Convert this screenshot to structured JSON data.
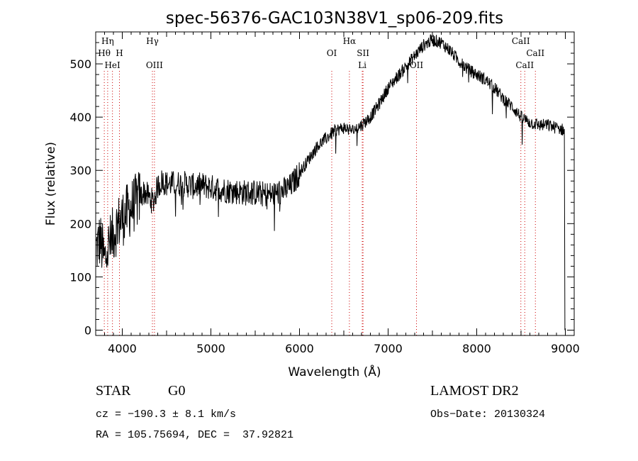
{
  "chart_data": {
    "type": "line",
    "title": "spec-56376-GAC103N38V1_sp06-209.fits",
    "xlabel": "Wavelength (Å)",
    "ylabel": "Flux (relative)",
    "xlim": [
      3700,
      9100
    ],
    "ylim": [
      -10,
      560
    ],
    "xticks": [
      4000,
      5000,
      6000,
      7000,
      8000,
      9000
    ],
    "yticks": [
      0,
      100,
      200,
      300,
      400,
      500
    ],
    "grid": false,
    "line_color": "#000000",
    "marker_color": "#cc0000",
    "x": [
      3700,
      3750,
      3800,
      3850,
      3900,
      3950,
      4000,
      4050,
      4100,
      4150,
      4200,
      4250,
      4300,
      4350,
      4400,
      4450,
      4500,
      4600,
      4700,
      4800,
      4900,
      5000,
      5100,
      5200,
      5300,
      5400,
      5500,
      5600,
      5700,
      5800,
      5900,
      6000,
      6100,
      6200,
      6300,
      6400,
      6500,
      6600,
      6700,
      6800,
      6900,
      7000,
      7100,
      7200,
      7300,
      7400,
      7500,
      7600,
      7700,
      7800,
      7900,
      8000,
      8100,
      8200,
      8300,
      8400,
      8500,
      8600,
      8700,
      8800,
      8900,
      9000
    ],
    "y": [
      150,
      170,
      130,
      160,
      180,
      200,
      210,
      220,
      230,
      240,
      250,
      260,
      250,
      240,
      270,
      280,
      275,
      275,
      275,
      270,
      272,
      268,
      265,
      262,
      260,
      258,
      258,
      255,
      255,
      260,
      270,
      295,
      320,
      345,
      360,
      375,
      380,
      375,
      385,
      400,
      425,
      455,
      475,
      495,
      515,
      535,
      545,
      540,
      525,
      505,
      490,
      480,
      470,
      455,
      435,
      420,
      400,
      390,
      385,
      385,
      380,
      375
    ],
    "lines": [
      {
        "label": "Hη",
        "x": 3835,
        "color": "#cc0000"
      },
      {
        "label": "Hθ",
        "x": 3797,
        "color": "#cc0000"
      },
      {
        "label": "H",
        "x": 3968,
        "color": "#cc0000"
      },
      {
        "label": "HeI",
        "x": 3889,
        "color": "#cc0000"
      },
      {
        "label": "Hγ",
        "x": 4340,
        "color": "#cc0000"
      },
      {
        "label": "OIII",
        "x": 4363,
        "color": "#cc0000"
      },
      {
        "label": "OI",
        "x": 6364,
        "color": "#cc0000"
      },
      {
        "label": "Hα",
        "x": 6563,
        "color": "#cc0000"
      },
      {
        "label": "SII",
        "x": 6717,
        "color": "#cc0000"
      },
      {
        "label": "Li",
        "x": 6708,
        "color": "#cc0000"
      },
      {
        "label": "OII",
        "x": 7320,
        "color": "#cc0000"
      },
      {
        "label": "CaII",
        "x": 8498,
        "color": "#cc0000"
      },
      {
        "label": "CaII",
        "x": 8542,
        "color": "#cc0000"
      },
      {
        "label": "CaII",
        "x": 8662,
        "color": "#cc0000"
      }
    ]
  },
  "info": {
    "class_label": "STAR",
    "subclass_label": "G0",
    "survey": "LAMOST DR2",
    "cz": "cz = −190.3 ± 8.1 km/s",
    "obs_date": "Obs−Date: 20130324",
    "radec": "RA = 105.75694, DEC =  37.92821"
  }
}
